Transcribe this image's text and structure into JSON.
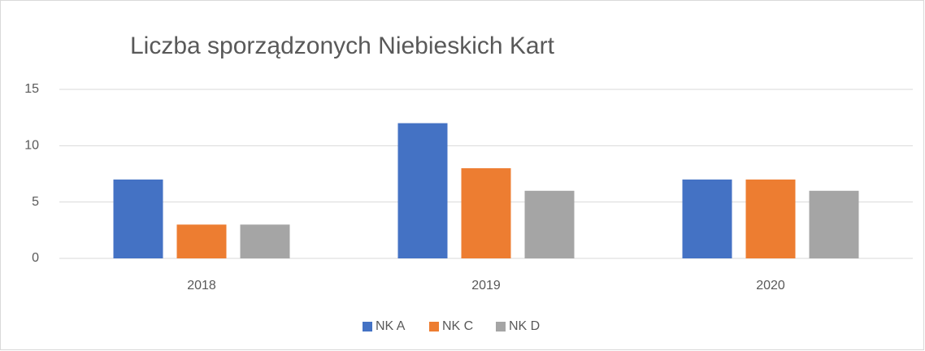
{
  "chart_data": {
    "type": "bar",
    "title": "Liczba sporządzonych Niebieskich Kart",
    "categories": [
      "2018",
      "2019",
      "2020"
    ],
    "series": [
      {
        "name": "NK A",
        "color": "#4472c4",
        "values": [
          7,
          12,
          7
        ]
      },
      {
        "name": "NK C",
        "color": "#ed7d31",
        "values": [
          3,
          8,
          7
        ]
      },
      {
        "name": "NK D",
        "color": "#a5a5a5",
        "values": [
          3,
          6,
          6
        ]
      }
    ],
    "ylim": [
      0,
      15
    ],
    "yticks": [
      0,
      5,
      10,
      15
    ],
    "grid": true,
    "legend": "bottom"
  }
}
